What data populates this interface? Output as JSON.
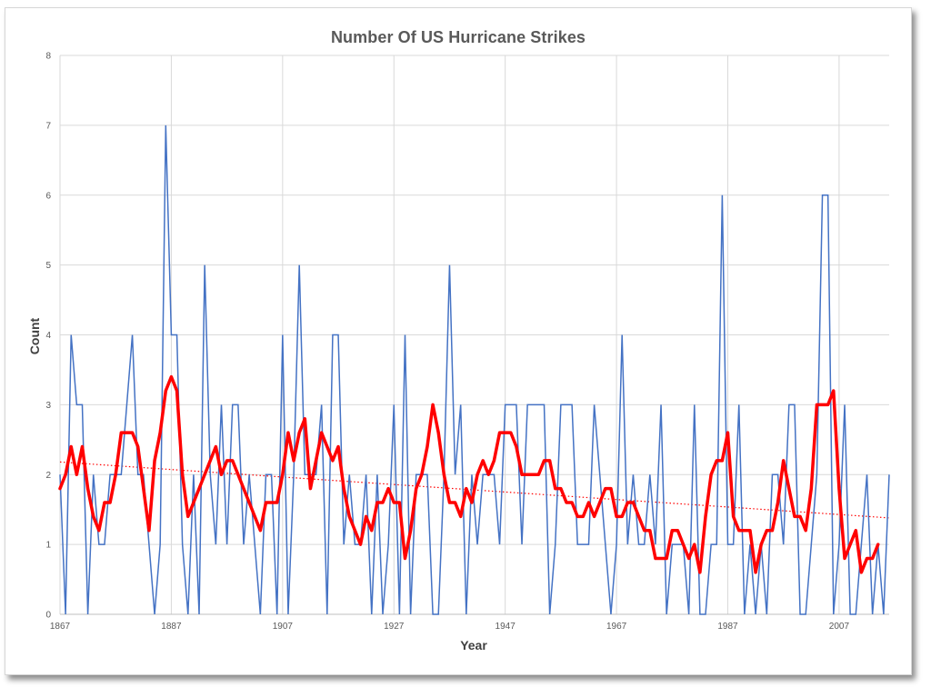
{
  "chart_data": {
    "type": "line",
    "title": "Number Of US Hurricane Strikes",
    "xlabel": "Year",
    "ylabel": "Count",
    "xlim": [
      1867,
      2016
    ],
    "ylim": [
      0,
      8
    ],
    "x_ticks": [
      "1867",
      "1887",
      "1907",
      "1927",
      "1947",
      "1967",
      "1987",
      "2007"
    ],
    "y_ticks": [
      "0",
      "1",
      "2",
      "3",
      "4",
      "5",
      "6",
      "7",
      "8"
    ],
    "grid": true,
    "colors": {
      "annual": "#4472c4",
      "smoothed": "#ff0000",
      "trend": "#ff0000"
    },
    "series": [
      {
        "style": "thin blue line",
        "x_start": 1867,
        "x_step": 1,
        "values": [
          2,
          0,
          4,
          3,
          3,
          0,
          2,
          1,
          1,
          2,
          2,
          2,
          3,
          4,
          2,
          2,
          1,
          0,
          1,
          7,
          4,
          4,
          1,
          0,
          2,
          0,
          5,
          2,
          1,
          3,
          1,
          3,
          3,
          1,
          2,
          1,
          0,
          2,
          2,
          0,
          4,
          0,
          2,
          5,
          2,
          2,
          2,
          3,
          0,
          4,
          4,
          1,
          2,
          1,
          1,
          2,
          0,
          2,
          0,
          1,
          3,
          0,
          4,
          0,
          2,
          2,
          2,
          0,
          0,
          2,
          5,
          2,
          3,
          0,
          2,
          1,
          2,
          2,
          2,
          1,
          3,
          3,
          3,
          1,
          3,
          3,
          3,
          3,
          0,
          1,
          3,
          3,
          3,
          1,
          1,
          1,
          3,
          2,
          1,
          0,
          1,
          4,
          1,
          2,
          1,
          1,
          2,
          1,
          3,
          0,
          1,
          1,
          1,
          0,
          3,
          0,
          0,
          1,
          1,
          6,
          1,
          1,
          3,
          0,
          1,
          0,
          1,
          0,
          2,
          2,
          1,
          3,
          3,
          0,
          0,
          1,
          2,
          6,
          6,
          0,
          1,
          3,
          0,
          0,
          1,
          2,
          0,
          1,
          0,
          2
        ]
      },
      {
        "style": "thick red line",
        "x_start": 1867,
        "x_step": 1,
        "values": [
          1.8,
          2.0,
          2.4,
          2.0,
          2.4,
          1.8,
          1.4,
          1.2,
          1.6,
          1.6,
          2.0,
          2.6,
          2.6,
          2.6,
          2.4,
          1.8,
          1.2,
          2.2,
          2.6,
          3.2,
          3.4,
          3.2,
          2.0,
          1.4,
          1.6,
          1.8,
          2.0,
          2.2,
          2.4,
          2.0,
          2.2,
          2.2,
          2.0,
          1.8,
          1.6,
          1.4,
          1.2,
          1.6,
          1.6,
          1.6,
          2.0,
          2.6,
          2.2,
          2.6,
          2.8,
          1.8,
          2.2,
          2.6,
          2.4,
          2.2,
          2.4,
          1.8,
          1.4,
          1.2,
          1.0,
          1.4,
          1.2,
          1.6,
          1.6,
          1.8,
          1.6,
          1.6,
          0.8,
          1.2,
          1.8,
          2.0,
          2.4,
          3.0,
          2.6,
          2.0,
          1.6,
          1.6,
          1.4,
          1.8,
          1.6,
          2.0,
          2.2,
          2.0,
          2.2,
          2.6,
          2.6,
          2.6,
          2.4,
          2.0,
          2.0,
          2.0,
          2.0,
          2.2,
          2.2,
          1.8,
          1.8,
          1.6,
          1.6,
          1.4,
          1.4,
          1.6,
          1.4,
          1.6,
          1.8,
          1.8,
          1.4,
          1.4,
          1.6,
          1.6,
          1.4,
          1.2,
          1.2,
          0.8,
          0.8,
          0.8,
          1.2,
          1.2,
          1.0,
          0.8,
          1.0,
          0.6,
          1.4,
          2.0,
          2.2,
          2.2,
          2.6,
          1.4,
          1.2,
          1.2,
          1.2,
          0.6,
          1.0,
          1.2,
          1.2,
          1.6,
          2.2,
          1.8,
          1.4,
          1.4,
          1.2,
          1.8,
          3.0,
          3.0,
          3.0,
          3.2,
          1.8,
          0.8,
          1.0,
          1.2,
          0.6,
          0.8,
          0.8,
          1.0
        ]
      },
      {
        "style": "dotted red linear trendline",
        "x": [
          1867,
          2016
        ],
        "values": [
          2.18,
          1.38
        ]
      }
    ]
  }
}
